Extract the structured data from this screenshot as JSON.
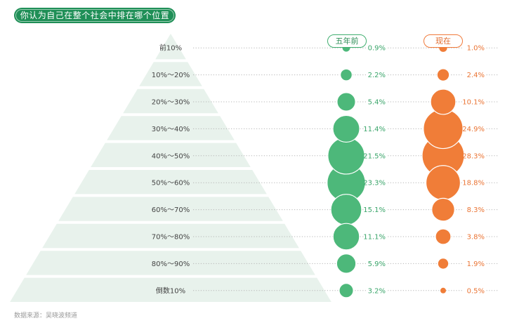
{
  "title": "你认为自己在整个社会中排在哪个位置",
  "source": "数据来源：吴晓波频道",
  "colors": {
    "before": "#4db87a",
    "now": "#f07d38",
    "pyramid": "#e8f2ec",
    "title_bg": "#1f8f57"
  },
  "chart_data": {
    "type": "scatter",
    "categories": [
      "前10%",
      "10%～20%",
      "20%～30%",
      "30%～40%",
      "40%～50%",
      "50%～60%",
      "60%～70%",
      "70%～80%",
      "80%～90%",
      "倒数10%"
    ],
    "series": [
      {
        "name": "五年前",
        "values": [
          0.9,
          2.2,
          5.4,
          11.4,
          21.5,
          23.3,
          15.1,
          11.1,
          5.9,
          3.2
        ],
        "labels": [
          "0.9%",
          "2.2%",
          "5.4%",
          "11.4%",
          "21.5%",
          "23.3%",
          "15.1%",
          "11.1%",
          "5.9%",
          "3.2%"
        ]
      },
      {
        "name": "现在",
        "values": [
          1.0,
          2.4,
          10.1,
          24.9,
          28.3,
          18.8,
          8.3,
          3.8,
          1.9,
          0.5
        ],
        "labels": [
          "1.0%",
          "2.4%",
          "10.1%",
          "24.9%",
          "28.3%",
          "18.8%",
          "8.3%",
          "3.8%",
          "1.9%",
          "0.5%"
        ]
      }
    ],
    "legend": "top"
  }
}
